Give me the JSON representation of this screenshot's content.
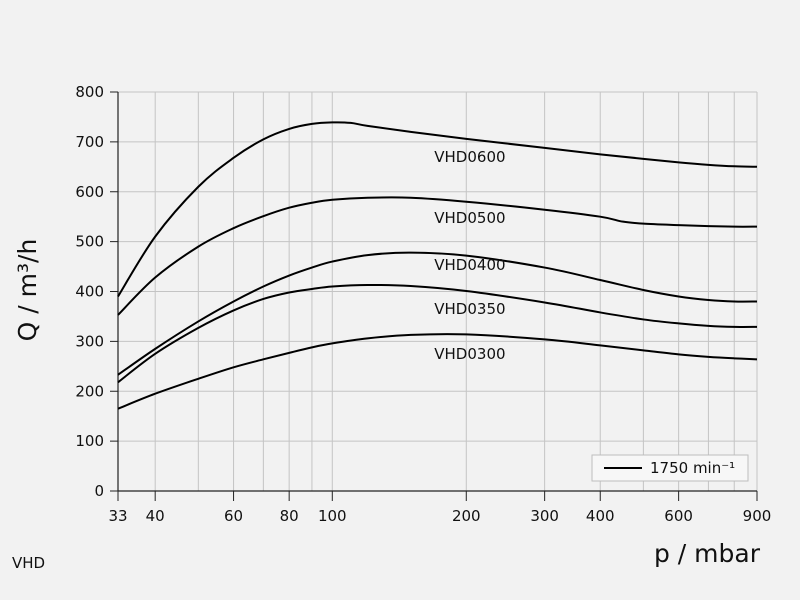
{
  "chart_data": {
    "type": "line",
    "title": "",
    "xlabel": "p / mbar",
    "ylabel": "Q / m³/h",
    "xscale": "log",
    "xlim": [
      33,
      900
    ],
    "ylim": [
      0,
      800
    ],
    "grid": true,
    "xticks": [
      33,
      40,
      60,
      80,
      100,
      200,
      300,
      400,
      600,
      900
    ],
    "xgrid_extra": [
      50,
      70,
      90,
      500,
      700,
      800
    ],
    "yticks": [
      0,
      100,
      200,
      300,
      400,
      500,
      600,
      700,
      800
    ],
    "legend": {
      "position": "bottom-right",
      "label": "1750 min⁻¹"
    },
    "line_color": "#000000",
    "series": [
      {
        "name": "VHD0600",
        "x": [
          33,
          40,
          50,
          60,
          70,
          80,
          90,
          100,
          110,
          120,
          150,
          200,
          300,
          400,
          500,
          600,
          700,
          800,
          900
        ],
        "values": [
          390,
          510,
          610,
          668,
          705,
          726,
          736,
          739,
          738,
          732,
          720,
          706,
          688,
          675,
          666,
          659,
          654,
          651,
          650
        ]
      },
      {
        "name": "VHD0500",
        "x": [
          33,
          40,
          50,
          60,
          70,
          80,
          90,
          100,
          120,
          150,
          200,
          300,
          400,
          450,
          500,
          600,
          700,
          800,
          900
        ],
        "values": [
          353,
          428,
          490,
          527,
          551,
          568,
          578,
          584,
          588,
          588,
          580,
          564,
          550,
          540,
          536,
          533,
          531,
          530,
          530
        ]
      },
      {
        "name": "VHD0400",
        "x": [
          33,
          40,
          50,
          60,
          70,
          80,
          90,
          100,
          120,
          150,
          200,
          300,
          400,
          500,
          600,
          700,
          800,
          900
        ],
        "values": [
          233,
          285,
          340,
          380,
          410,
          432,
          448,
          460,
          473,
          478,
          472,
          448,
          423,
          403,
          390,
          383,
          380,
          380
        ]
      },
      {
        "name": "VHD0350",
        "x": [
          33,
          40,
          50,
          60,
          70,
          80,
          90,
          100,
          120,
          150,
          200,
          300,
          400,
          500,
          600,
          700,
          800,
          900
        ],
        "values": [
          218,
          275,
          327,
          362,
          385,
          398,
          405,
          410,
          413,
          411,
          401,
          378,
          358,
          344,
          336,
          331,
          329,
          329
        ]
      },
      {
        "name": "VHD0300",
        "x": [
          33,
          40,
          50,
          60,
          70,
          80,
          90,
          100,
          120,
          150,
          200,
          300,
          400,
          500,
          600,
          700,
          800,
          900
        ],
        "values": [
          165,
          195,
          225,
          248,
          264,
          277,
          288,
          296,
          306,
          313,
          314,
          304,
          292,
          282,
          274,
          269,
          266,
          264
        ]
      }
    ],
    "curve_labels": [
      {
        "text": "VHD0600",
        "x": 200,
        "y": 660
      },
      {
        "text": "VHD0500",
        "x": 200,
        "y": 537
      },
      {
        "text": "VHD0400",
        "x": 200,
        "y": 443
      },
      {
        "text": "VHD0350",
        "x": 200,
        "y": 355
      },
      {
        "text": "VHD0300",
        "x": 200,
        "y": 265
      }
    ]
  },
  "footer": {
    "label": "VHD"
  }
}
